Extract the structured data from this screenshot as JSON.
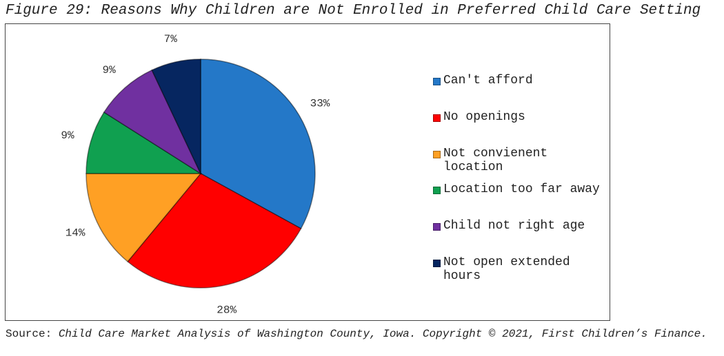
{
  "figure": {
    "title": "Figure 29: Reasons Why Children are Not Enrolled in Preferred Child Care Setting"
  },
  "source": {
    "prefix": "Source: ",
    "text": "Child Care Market Analysis of Washington County, Iowa. Copyright © 2021, First Children’s Finance."
  },
  "chart_data": {
    "type": "pie",
    "title": "",
    "legend_position": "right",
    "slices": [
      {
        "label": "Can't afford",
        "value": 33,
        "display": "33%",
        "color": "#2478c8"
      },
      {
        "label": "No openings",
        "value": 28,
        "display": "28%",
        "color": "#ff0000"
      },
      {
        "label": "Not convienent location",
        "value": 14,
        "display": "14%",
        "color": "#ffa024"
      },
      {
        "label": "Location too far away",
        "value": 9,
        "display": "9%",
        "color": "#10a050"
      },
      {
        "label": "Child not right age",
        "value": 9,
        "display": "9%",
        "color": "#7030a0"
      },
      {
        "label": "Not open extended hours",
        "value": 7,
        "display": "7%",
        "color": "#062660"
      }
    ]
  }
}
